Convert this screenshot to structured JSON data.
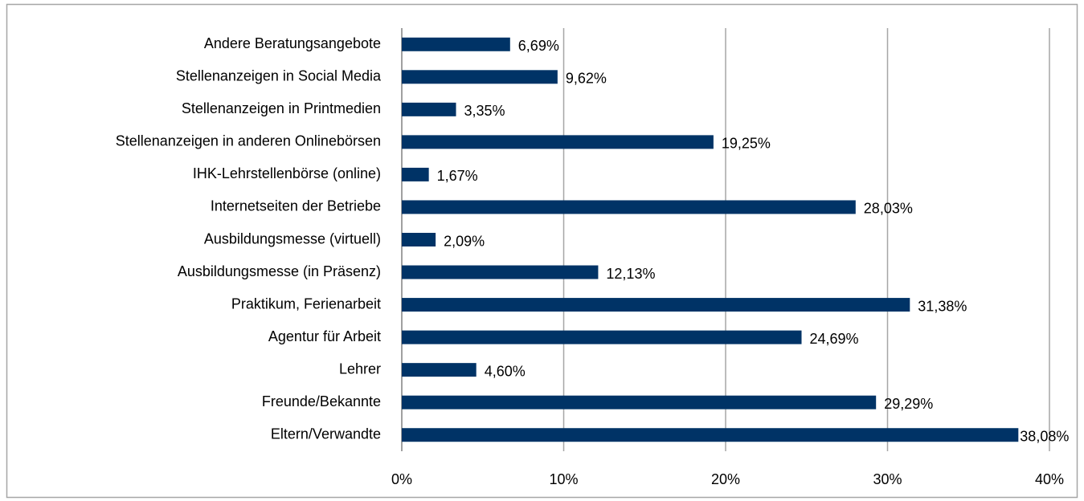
{
  "chart_data": {
    "type": "bar",
    "orientation": "horizontal",
    "categories": [
      "Andere Beratungsangebote",
      "Stellenanzeigen in Social Media",
      "Stellenanzeigen in Printmedien",
      "Stellenanzeigen in anderen Onlinebörsen",
      "IHK-Lehrstellenbörse (online)",
      "Internetseiten der Betriebe",
      "Ausbildungsmesse (virtuell)",
      "Ausbildungsmesse (in Präsenz)",
      "Praktikum, Ferienarbeit",
      "Agentur für Arbeit",
      "Lehrer",
      "Freunde/Bekannte",
      "Eltern/Verwandte"
    ],
    "values": [
      6.69,
      9.62,
      3.35,
      19.25,
      1.67,
      28.03,
      2.09,
      12.13,
      31.38,
      24.69,
      4.6,
      29.29,
      38.08
    ],
    "value_labels": [
      "6,69%",
      "9,62%",
      "3,35%",
      "19,25%",
      "1,67%",
      "28,03%",
      "2,09%",
      "12,13%",
      "31,38%",
      "24,69%",
      "4,60%",
      "29,29%",
      "38,08%"
    ],
    "color": "#003366",
    "xlim": [
      0,
      40
    ],
    "xticks": [
      {
        "value": 0,
        "label": "0%"
      },
      {
        "value": 10,
        "label": "10%"
      },
      {
        "value": 20,
        "label": "20%"
      },
      {
        "value": 30,
        "label": "30%"
      },
      {
        "value": 40,
        "label": "40%"
      }
    ],
    "grid": true
  }
}
